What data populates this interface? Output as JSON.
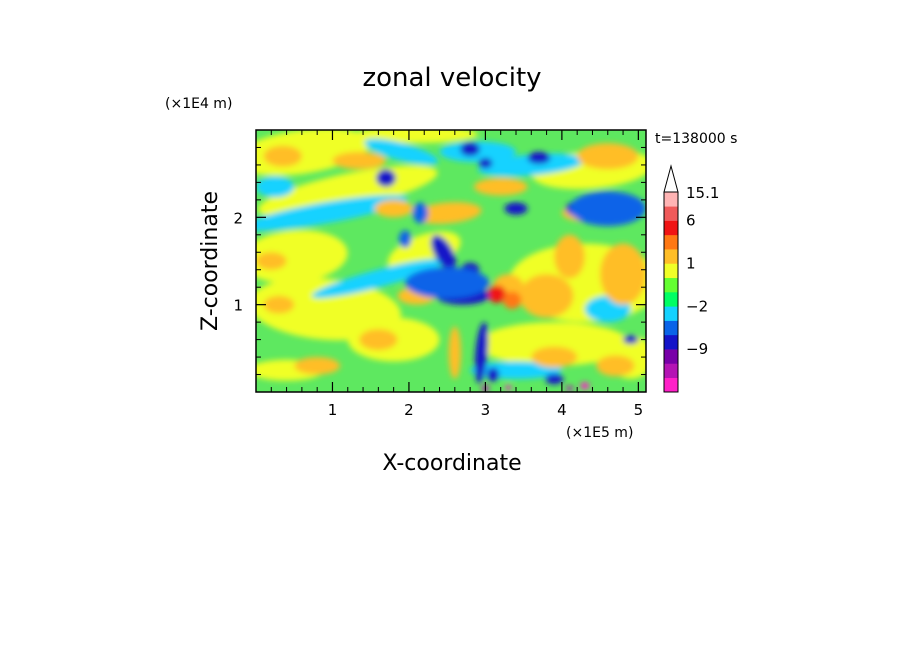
{
  "chart_data": {
    "type": "heatmap",
    "title": "zonal velocity",
    "xlabel": "X-coordinate",
    "ylabel": "Z-coordinate",
    "x_unit": "(×1E5 m)",
    "y_unit": "(×1E4 m)",
    "time_label": "t=138000 s",
    "xlim": [
      0,
      5.1
    ],
    "ylim": [
      0,
      3.0
    ],
    "x_ticks": [
      1,
      2,
      3,
      4,
      5
    ],
    "y_ticks": [
      1,
      2
    ],
    "x_tick_labels": [
      "1",
      "2",
      "3",
      "4",
      "5"
    ],
    "y_tick_labels": [
      "1",
      "2"
    ],
    "colorbar": {
      "labels": [
        "15.1",
        "6",
        "1",
        "−2",
        "−9"
      ],
      "label_values": [
        15.1,
        6,
        1,
        -2,
        -9
      ],
      "levels": [
        -15,
        -12,
        -9,
        -6,
        -4,
        -2,
        -1,
        0,
        1,
        2,
        3,
        6,
        9,
        12,
        15.1
      ],
      "colors": [
        "#ff20c8",
        "#b414b4",
        "#7800a8",
        "#1414c8",
        "#0a64e8",
        "#14d2ff",
        "#00ff64",
        "#64ff32",
        "#f0ff28",
        "#ffbe28",
        "#ff7814",
        "#f01414",
        "#f05a5a",
        "#ffb4b4"
      ]
    }
  }
}
